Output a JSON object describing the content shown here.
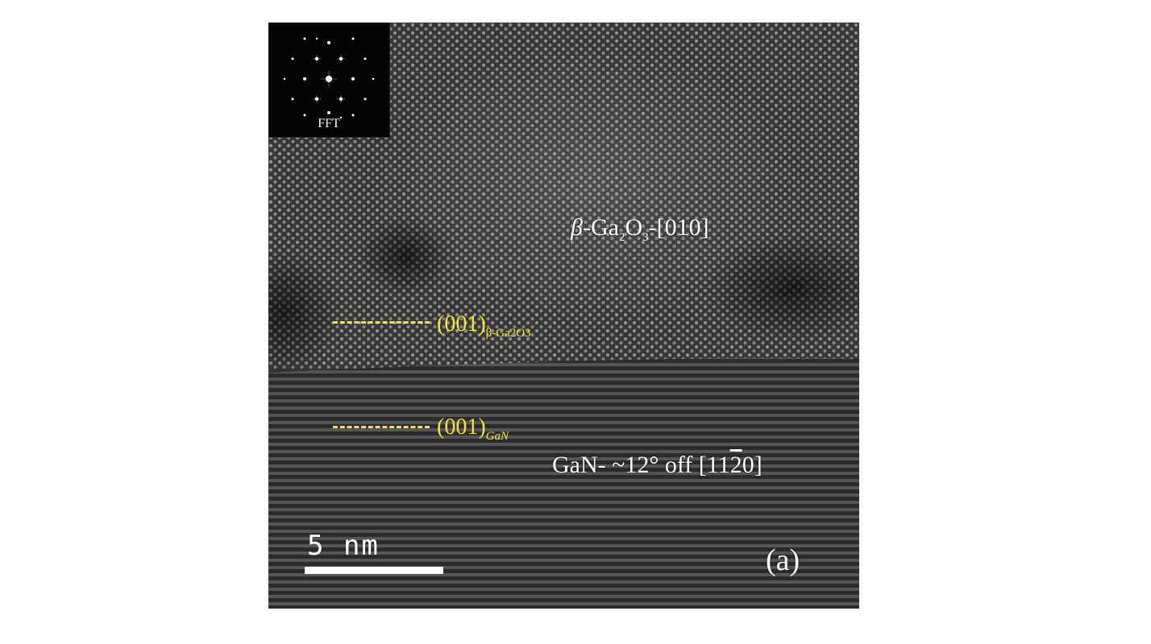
{
  "image": {
    "fft_label": "FFT",
    "top_phase": {
      "prefix": "β",
      "text1": "-Ga",
      "sub1": "2",
      "text2": "O",
      "sub2": "3",
      "text3": "-[010]"
    },
    "plane_top": {
      "text": "(001)",
      "subscript": "β-Ga2O3"
    },
    "plane_bottom": {
      "text": "(001)",
      "subscript": "GaN"
    },
    "bottom_phase": {
      "text1": "GaN- ~12° off [11",
      "bar_digit": "2",
      "text2": "0]"
    },
    "scale_bar_label": "5  nm",
    "panel_label": "(a)",
    "colors": {
      "annotation_yellow": "#f2e33b",
      "label_white": "#ffffff",
      "image_gray": "#3a3a3a"
    }
  }
}
